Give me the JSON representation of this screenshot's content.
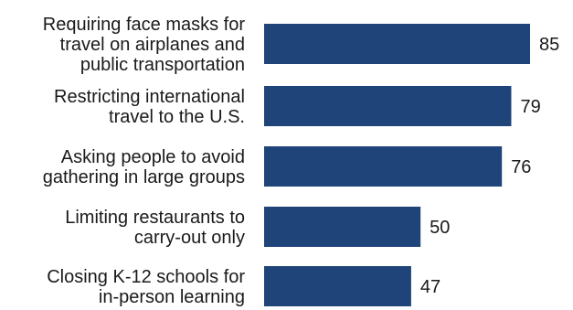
{
  "chart_data": {
    "type": "bar",
    "orientation": "horizontal",
    "categories": [
      [
        "Requiring face masks for",
        "travel on airplanes and",
        "public transportation"
      ],
      [
        "Restricting international",
        "travel to the U.S."
      ],
      [
        "Asking people to avoid",
        "gathering in large groups"
      ],
      [
        "Limiting restaurants to",
        "carry-out only"
      ],
      [
        "Closing K-12 schools for",
        "in-person learning"
      ]
    ],
    "values": [
      85,
      79,
      76,
      50,
      47
    ],
    "value_labels": [
      "85",
      "79",
      "76",
      "50",
      "47"
    ],
    "title": "",
    "xlabel": "",
    "ylabel": "",
    "xlim": [
      0,
      100
    ],
    "grid": false,
    "legend": "none",
    "bar_color": "#1f4479"
  }
}
